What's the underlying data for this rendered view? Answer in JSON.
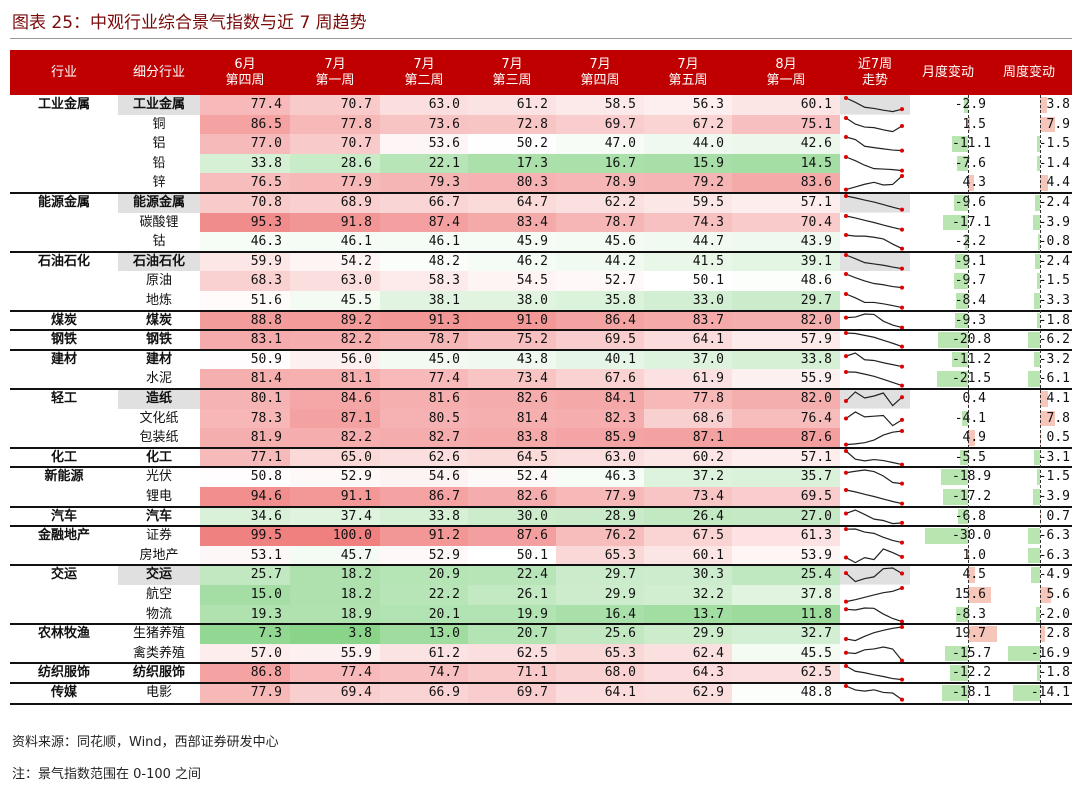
{
  "title": "图表 25：中观行业综合景气指数与近 7 周趋势",
  "headers": {
    "industry": "行业",
    "sub": "细分行业",
    "weeks": [
      {
        "month": "6月",
        "week": "第四周"
      },
      {
        "month": "7月",
        "week": "第一周"
      },
      {
        "month": "7月",
        "week": "第二周"
      },
      {
        "month": "7月",
        "week": "第三周"
      },
      {
        "month": "7月",
        "week": "第四周"
      },
      {
        "month": "7月",
        "week": "第五周"
      },
      {
        "month": "8月",
        "week": "第一周"
      }
    ],
    "trend": "近7周\n走势",
    "monthly": "月度变动",
    "weekly": "周度变动"
  },
  "chart_data": {
    "type": "table",
    "rows": [
      {
        "industry": "工业金属",
        "sub": "工业金属",
        "hl": true,
        "values": [
          77.4,
          70.7,
          63.0,
          61.2,
          58.5,
          56.3,
          60.1
        ],
        "monthly": -2.9,
        "weekly": 3.8
      },
      {
        "industry": "",
        "sub": "铜",
        "values": [
          86.5,
          77.8,
          73.6,
          72.8,
          69.7,
          67.2,
          75.1
        ],
        "monthly": 1.5,
        "weekly": 7.9
      },
      {
        "industry": "",
        "sub": "铝",
        "values": [
          77.0,
          70.7,
          53.6,
          50.2,
          47.0,
          44.0,
          42.6
        ],
        "monthly": -11.1,
        "weekly": -1.5
      },
      {
        "industry": "",
        "sub": "铅",
        "values": [
          33.8,
          28.6,
          22.1,
          17.3,
          16.7,
          15.9,
          14.5
        ],
        "monthly": -7.6,
        "weekly": -1.4
      },
      {
        "industry": "",
        "sub": "锌",
        "values": [
          76.5,
          77.9,
          79.3,
          80.3,
          78.9,
          79.2,
          83.6
        ],
        "monthly": 4.3,
        "weekly": 4.4
      },
      {
        "industry": "能源金属",
        "sub": "能源金属",
        "hl": true,
        "values": [
          70.8,
          68.9,
          66.7,
          64.7,
          62.2,
          59.5,
          57.1
        ],
        "monthly": -9.6,
        "weekly": -2.4
      },
      {
        "industry": "",
        "sub": "碳酸锂",
        "values": [
          95.3,
          91.8,
          87.4,
          83.4,
          78.7,
          74.3,
          70.4
        ],
        "monthly": -17.1,
        "weekly": -3.9
      },
      {
        "industry": "",
        "sub": "钴",
        "values": [
          46.3,
          46.1,
          46.1,
          45.9,
          45.6,
          44.7,
          43.9
        ],
        "monthly": -2.2,
        "weekly": -0.8
      },
      {
        "industry": "石油石化",
        "sub": "石油石化",
        "hl": true,
        "values": [
          59.9,
          54.2,
          48.2,
          46.2,
          44.2,
          41.5,
          39.1
        ],
        "monthly": -9.1,
        "weekly": -2.4
      },
      {
        "industry": "",
        "sub": "原油",
        "values": [
          68.3,
          63.0,
          58.3,
          54.5,
          52.7,
          50.1,
          48.6
        ],
        "monthly": -9.7,
        "weekly": -1.5
      },
      {
        "industry": "",
        "sub": "地炼",
        "values": [
          51.6,
          45.5,
          38.1,
          38.0,
          35.8,
          33.0,
          29.7
        ],
        "monthly": -8.4,
        "weekly": -3.3
      },
      {
        "industry": "煤炭",
        "sub": "煤炭",
        "values": [
          88.8,
          89.2,
          91.3,
          91.0,
          86.4,
          83.7,
          82.0
        ],
        "monthly": -9.3,
        "weekly": -1.8
      },
      {
        "industry": "钢铁",
        "sub": "钢铁",
        "values": [
          83.1,
          82.2,
          78.7,
          75.2,
          69.5,
          64.1,
          57.9
        ],
        "monthly": -20.8,
        "weekly": -6.2
      },
      {
        "industry": "建材",
        "sub": "建材",
        "values": [
          50.9,
          56.0,
          45.0,
          43.8,
          40.1,
          37.0,
          33.8
        ],
        "monthly": -11.2,
        "weekly": -3.2
      },
      {
        "industry": "",
        "sub": "水泥",
        "values": [
          81.4,
          81.1,
          77.4,
          73.4,
          67.6,
          61.9,
          55.9
        ],
        "monthly": -21.5,
        "weekly": -6.1
      },
      {
        "industry": "轻工",
        "sub": "造纸",
        "hl": true,
        "values": [
          80.1,
          84.6,
          81.6,
          82.6,
          84.1,
          77.8,
          82.0
        ],
        "monthly": 0.4,
        "weekly": 4.1
      },
      {
        "industry": "",
        "sub": "文化纸",
        "values": [
          78.3,
          87.1,
          80.5,
          81.4,
          82.3,
          68.6,
          76.4
        ],
        "monthly": -4.1,
        "weekly": 7.8
      },
      {
        "industry": "",
        "sub": "包装纸",
        "values": [
          81.9,
          82.2,
          82.7,
          83.8,
          85.9,
          87.1,
          87.6
        ],
        "monthly": 4.9,
        "weekly": 0.5
      },
      {
        "industry": "化工",
        "sub": "化工",
        "values": [
          77.1,
          65.0,
          62.6,
          64.5,
          63.0,
          60.2,
          57.1
        ],
        "monthly": -5.5,
        "weekly": -3.1
      },
      {
        "industry": "新能源",
        "sub": "光伏",
        "values": [
          50.8,
          52.9,
          54.6,
          52.4,
          46.3,
          37.2,
          35.7
        ],
        "monthly": -18.9,
        "weekly": -1.5
      },
      {
        "industry": "",
        "sub": "锂电",
        "values": [
          94.6,
          91.1,
          86.7,
          82.6,
          77.9,
          73.4,
          69.5
        ],
        "monthly": -17.2,
        "weekly": -3.9
      },
      {
        "industry": "汽车",
        "sub": "汽车",
        "values": [
          34.6,
          37.4,
          33.8,
          30.0,
          28.9,
          26.4,
          27.0
        ],
        "monthly": -6.8,
        "weekly": 0.7
      },
      {
        "industry": "金融地产",
        "sub": "证券",
        "values": [
          99.5,
          100.0,
          91.2,
          87.6,
          76.2,
          67.5,
          61.3
        ],
        "monthly": -30.0,
        "weekly": -6.3
      },
      {
        "industry": "",
        "sub": "房地产",
        "values": [
          53.1,
          45.7,
          52.9,
          50.1,
          65.3,
          60.1,
          53.9
        ],
        "monthly": 1.0,
        "weekly": -6.3
      },
      {
        "industry": "交运",
        "sub": "交运",
        "hl": true,
        "values": [
          25.7,
          18.2,
          20.9,
          22.4,
          29.7,
          30.3,
          25.4
        ],
        "monthly": 4.5,
        "weekly": -4.9
      },
      {
        "industry": "",
        "sub": "航空",
        "values": [
          15.0,
          18.2,
          22.2,
          26.1,
          29.9,
          32.2,
          37.8
        ],
        "monthly": 15.6,
        "weekly": 5.6
      },
      {
        "industry": "",
        "sub": "物流",
        "values": [
          19.3,
          18.9,
          20.1,
          19.9,
          16.4,
          13.7,
          11.8
        ],
        "monthly": -8.3,
        "weekly": -2.0
      },
      {
        "industry": "农林牧渔",
        "sub": "生猪养殖",
        "values": [
          7.3,
          3.8,
          13.0,
          20.7,
          25.6,
          29.9,
          32.7
        ],
        "monthly": 19.7,
        "weekly": 2.8
      },
      {
        "industry": "",
        "sub": "禽类养殖",
        "values": [
          57.0,
          55.9,
          61.2,
          62.5,
          65.3,
          62.4,
          45.5
        ],
        "monthly": -15.7,
        "weekly": -16.9
      },
      {
        "industry": "纺织服饰",
        "sub": "纺织服饰",
        "values": [
          86.8,
          77.4,
          74.7,
          71.1,
          68.0,
          64.3,
          62.5
        ],
        "monthly": -12.2,
        "weekly": -1.8
      },
      {
        "industry": "传媒",
        "sub": "电影",
        "values": [
          77.9,
          69.4,
          66.9,
          69.7,
          64.1,
          62.9,
          48.8
        ],
        "monthly": -18.1,
        "weekly": -14.1
      }
    ],
    "value_range": [
      0,
      100
    ]
  },
  "footer": {
    "source": "资料来源：同花顺，Wind，西部证券研发中心",
    "note": "注：景气指数范围在 0-100 之间"
  },
  "colors": {
    "header_bg": "#c00000",
    "high": "#f08080",
    "low": "#7fd07f",
    "mid": "#ffffff",
    "pos_bar": "#f6c6bb",
    "neg_bar": "#b9e6b0",
    "spark_line": "#222222",
    "spark_end": "#e00000"
  }
}
